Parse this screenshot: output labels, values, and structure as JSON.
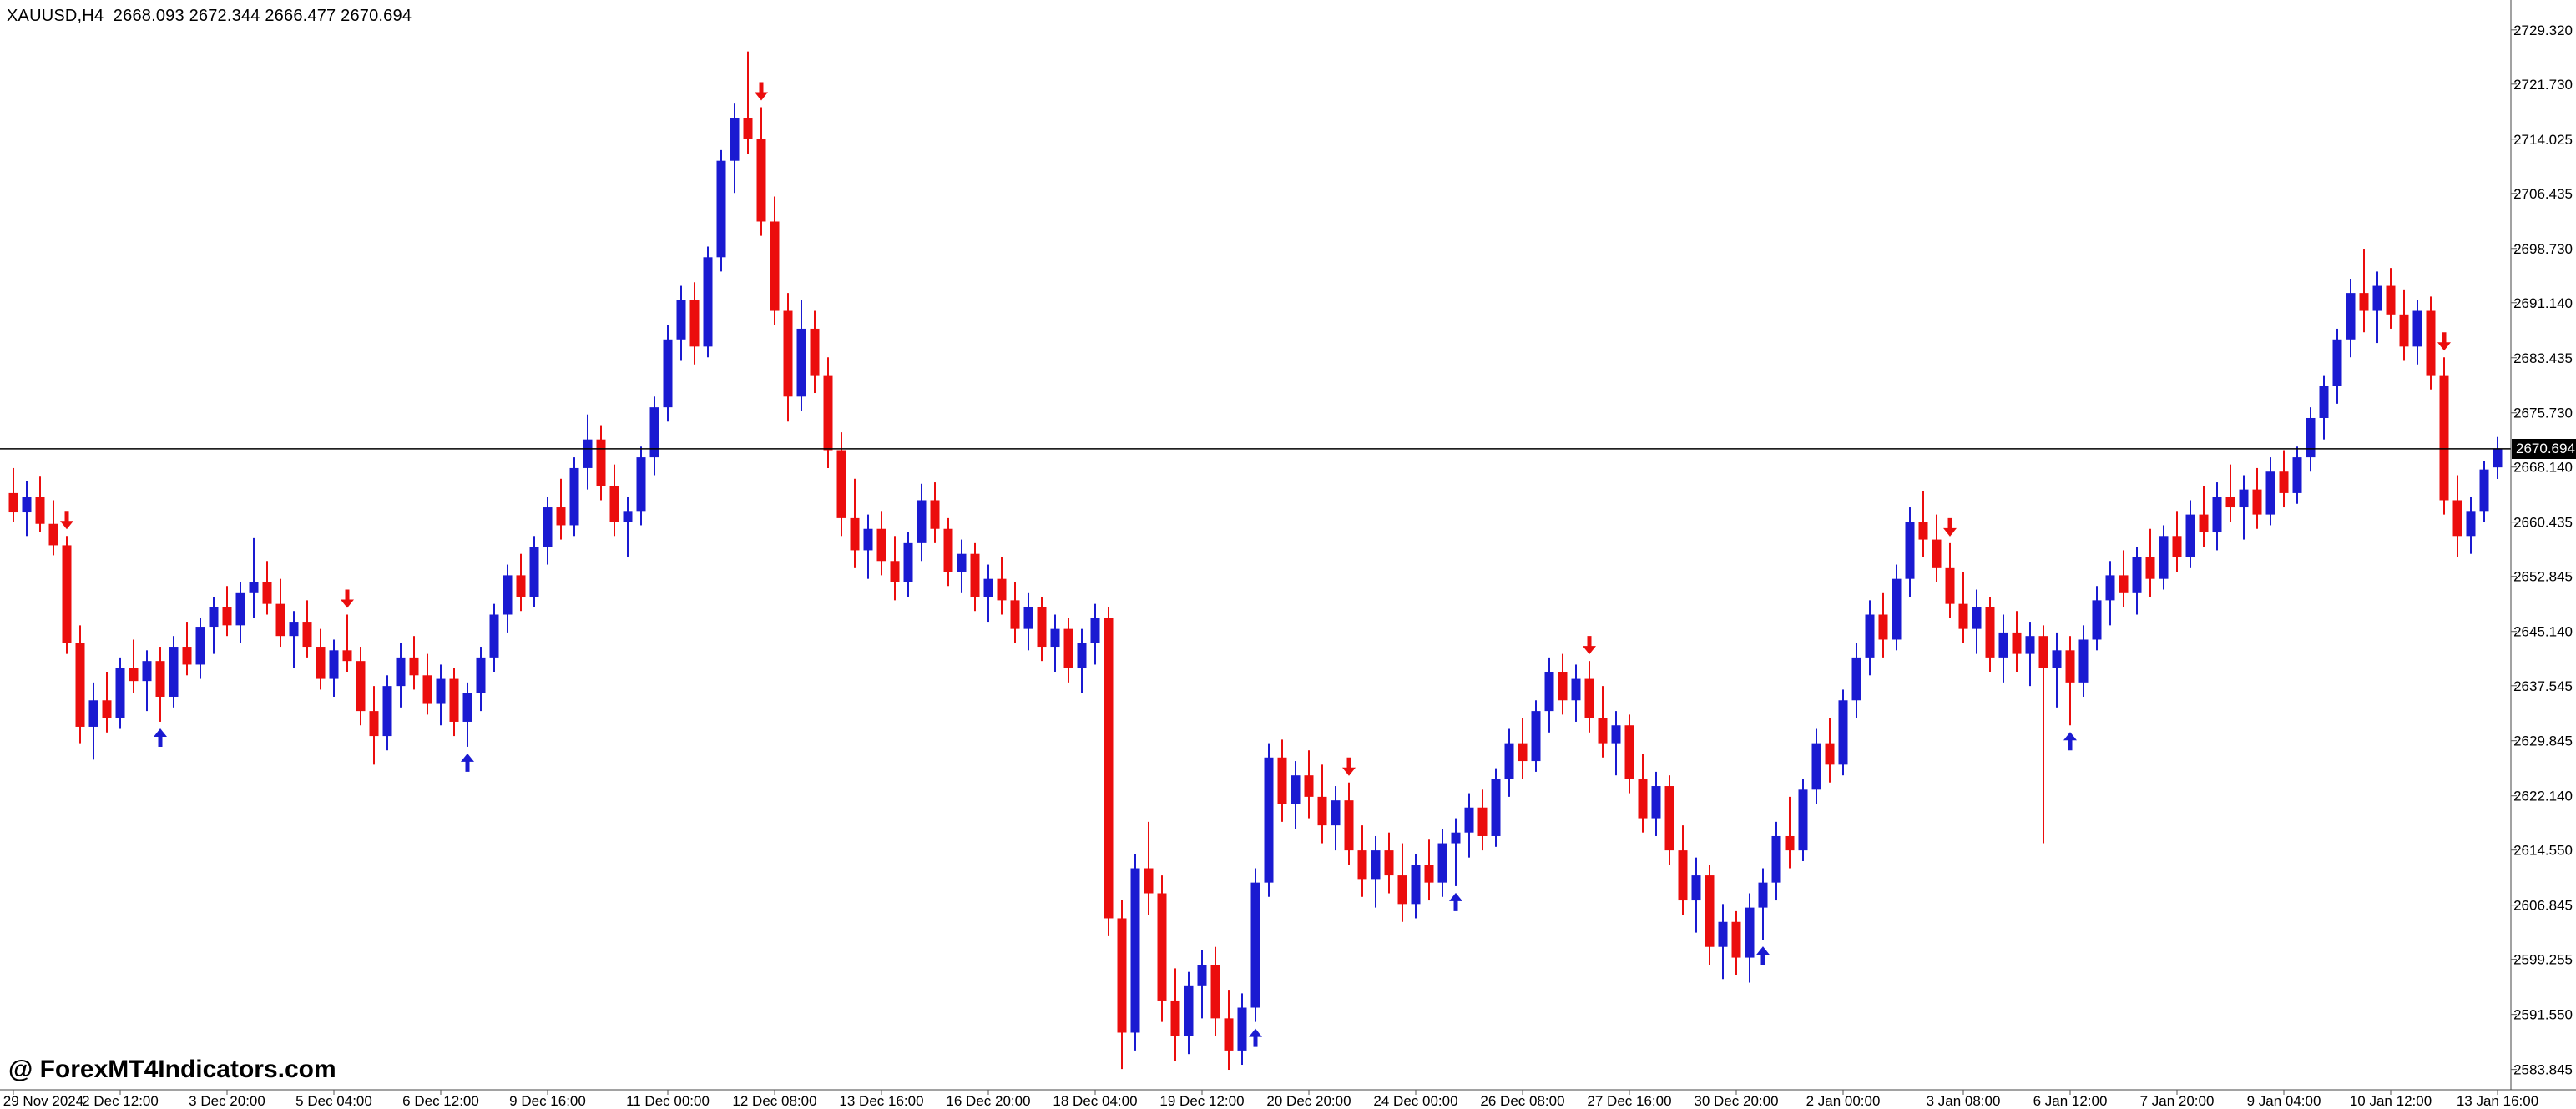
{
  "header": {
    "symbol_period": "XAUUSD,H4",
    "quote_ohlc": "2668.093 2672.344 2666.477 2670.694"
  },
  "watermark": {
    "text": "@ ForexMT4Indicators.com"
  },
  "colors": {
    "background": "#ffffff",
    "bull": "#1a1ad1",
    "bear": "#eb0d0d",
    "buy_arrow": "#1a1ad1",
    "sell_arrow": "#eb0d0d",
    "axis_text": "#000000",
    "axis_line": "#444444",
    "tick": "#555555",
    "bid_line": "#000000",
    "price_tag_bg": "#000000",
    "price_tag_text": "#ffffff"
  },
  "chart_data": {
    "type": "candlestick",
    "symbol": "XAUUSD",
    "timeframe": "H4",
    "current_price": 2670.694,
    "current_price_label": "2670.694",
    "ylim": [
      2581.0,
      2733.5
    ],
    "grid": false,
    "legend": "none",
    "y_axis_labels": [
      "2729.320",
      "2721.730",
      "2714.025",
      "2706.435",
      "2698.730",
      "2691.140",
      "2683.435",
      "2675.730",
      "2668.140",
      "2660.435",
      "2652.845",
      "2645.140",
      "2637.545",
      "2629.845",
      "2622.140",
      "2614.550",
      "2606.845",
      "2599.255",
      "2591.550",
      "2583.845"
    ],
    "x_axis_labels": [
      "29 Nov 2024",
      "2 Dec 12:00",
      "3 Dec 20:00",
      "5 Dec 04:00",
      "6 Dec 12:00",
      "9 Dec 16:00",
      "11 Dec 00:00",
      "12 Dec 08:00",
      "13 Dec 16:00",
      "16 Dec 20:00",
      "18 Dec 04:00",
      "19 Dec 12:00",
      "20 Dec 20:00",
      "24 Dec 00:00",
      "26 Dec 08:00",
      "27 Dec 16:00",
      "30 Dec 20:00",
      "2 Jan 00:00",
      "3 Jan 08:00",
      "6 Jan 12:00",
      "7 Jan 20:00",
      "9 Jan 04:00",
      "10 Jan 12:00",
      "13 Jan 16:00"
    ],
    "candles": [
      [
        2664.5,
        2668.0,
        2660.5,
        2661.8
      ],
      [
        2661.8,
        2666.2,
        2658.5,
        2664.0
      ],
      [
        2664.0,
        2666.8,
        2659.0,
        2660.2
      ],
      [
        2660.2,
        2663.5,
        2655.8,
        2657.2
      ],
      [
        2657.2,
        2658.5,
        2642.0,
        2643.5
      ],
      [
        2643.5,
        2646.0,
        2629.5,
        2631.8
      ],
      [
        2631.8,
        2638.0,
        2627.2,
        2635.5
      ],
      [
        2635.5,
        2639.5,
        2631.0,
        2633.0
      ],
      [
        2633.0,
        2641.5,
        2631.5,
        2640.0
      ],
      [
        2640.0,
        2644.0,
        2636.5,
        2638.2
      ],
      [
        2638.2,
        2642.5,
        2634.0,
        2641.0
      ],
      [
        2641.0,
        2643.0,
        2632.5,
        2636.0
      ],
      [
        2636.0,
        2644.5,
        2634.5,
        2643.0
      ],
      [
        2643.0,
        2646.5,
        2639.0,
        2640.5
      ],
      [
        2640.5,
        2647.0,
        2638.5,
        2645.8
      ],
      [
        2645.8,
        2650.0,
        2642.0,
        2648.5
      ],
      [
        2648.5,
        2651.5,
        2644.5,
        2646.0
      ],
      [
        2646.0,
        2652.0,
        2643.5,
        2650.5
      ],
      [
        2650.5,
        2658.2,
        2647.0,
        2652.0
      ],
      [
        2652.0,
        2655.0,
        2647.5,
        2649.0
      ],
      [
        2649.0,
        2652.5,
        2643.0,
        2644.5
      ],
      [
        2644.5,
        2648.0,
        2640.0,
        2646.5
      ],
      [
        2646.5,
        2649.5,
        2641.5,
        2643.0
      ],
      [
        2643.0,
        2645.5,
        2637.0,
        2638.5
      ],
      [
        2638.5,
        2644.0,
        2636.0,
        2642.5
      ],
      [
        2642.5,
        2647.5,
        2639.5,
        2641.0
      ],
      [
        2641.0,
        2643.0,
        2632.0,
        2634.0
      ],
      [
        2634.0,
        2637.5,
        2626.5,
        2630.5
      ],
      [
        2630.5,
        2639.0,
        2628.5,
        2637.5
      ],
      [
        2637.5,
        2643.5,
        2634.5,
        2641.5
      ],
      [
        2641.5,
        2644.5,
        2637.0,
        2639.0
      ],
      [
        2639.0,
        2642.0,
        2633.5,
        2635.0
      ],
      [
        2635.0,
        2640.5,
        2632.0,
        2638.5
      ],
      [
        2638.5,
        2640.0,
        2630.5,
        2632.5
      ],
      [
        2632.5,
        2638.0,
        2629.0,
        2636.5
      ],
      [
        2636.5,
        2643.0,
        2634.0,
        2641.5
      ],
      [
        2641.5,
        2649.0,
        2639.5,
        2647.5
      ],
      [
        2647.5,
        2654.5,
        2645.0,
        2653.0
      ],
      [
        2653.0,
        2656.0,
        2648.0,
        2650.0
      ],
      [
        2650.0,
        2658.5,
        2648.5,
        2657.0
      ],
      [
        2657.0,
        2664.0,
        2654.5,
        2662.5
      ],
      [
        2662.5,
        2666.5,
        2658.0,
        2660.0
      ],
      [
        2660.0,
        2669.5,
        2658.5,
        2668.0
      ],
      [
        2668.0,
        2675.5,
        2665.0,
        2672.0
      ],
      [
        2672.0,
        2674.0,
        2663.5,
        2665.5
      ],
      [
        2665.5,
        2668.5,
        2658.5,
        2660.5
      ],
      [
        2660.5,
        2664.0,
        2655.5,
        2662.0
      ],
      [
        2662.0,
        2671.0,
        2660.0,
        2669.5
      ],
      [
        2669.5,
        2678.0,
        2667.0,
        2676.5
      ],
      [
        2676.5,
        2688.0,
        2674.5,
        2686.0
      ],
      [
        2686.0,
        2693.5,
        2683.0,
        2691.5
      ],
      [
        2691.5,
        2694.0,
        2682.5,
        2685.0
      ],
      [
        2685.0,
        2699.0,
        2683.5,
        2697.5
      ],
      [
        2697.5,
        2712.5,
        2695.5,
        2711.0
      ],
      [
        2711.0,
        2719.0,
        2706.5,
        2717.0
      ],
      [
        2717.0,
        2726.3,
        2712.0,
        2714.0
      ],
      [
        2714.0,
        2718.5,
        2700.5,
        2702.5
      ],
      [
        2702.5,
        2706.0,
        2688.0,
        2690.0
      ],
      [
        2690.0,
        2692.5,
        2674.5,
        2678.0
      ],
      [
        2678.0,
        2691.5,
        2676.0,
        2687.5
      ],
      [
        2687.5,
        2690.0,
        2678.5,
        2681.0
      ],
      [
        2681.0,
        2683.5,
        2668.0,
        2670.5
      ],
      [
        2670.5,
        2673.0,
        2658.5,
        2661.0
      ],
      [
        2661.0,
        2666.5,
        2654.0,
        2656.5
      ],
      [
        2656.5,
        2661.5,
        2652.5,
        2659.5
      ],
      [
        2659.5,
        2662.0,
        2653.0,
        2655.0
      ],
      [
        2655.0,
        2658.5,
        2649.5,
        2652.0
      ],
      [
        2652.0,
        2659.0,
        2650.0,
        2657.5
      ],
      [
        2657.5,
        2665.8,
        2655.0,
        2663.5
      ],
      [
        2663.5,
        2666.0,
        2657.5,
        2659.5
      ],
      [
        2659.5,
        2661.0,
        2651.5,
        2653.5
      ],
      [
        2653.5,
        2658.0,
        2650.5,
        2656.0
      ],
      [
        2656.0,
        2657.5,
        2648.0,
        2650.0
      ],
      [
        2650.0,
        2654.5,
        2646.5,
        2652.5
      ],
      [
        2652.5,
        2655.5,
        2647.5,
        2649.5
      ],
      [
        2649.5,
        2652.0,
        2643.5,
        2645.5
      ],
      [
        2645.5,
        2650.5,
        2642.5,
        2648.5
      ],
      [
        2648.5,
        2650.0,
        2641.0,
        2643.0
      ],
      [
        2643.0,
        2647.5,
        2639.5,
        2645.5
      ],
      [
        2645.5,
        2647.0,
        2638.0,
        2640.0
      ],
      [
        2640.0,
        2645.5,
        2636.5,
        2643.5
      ],
      [
        2643.5,
        2649.0,
        2640.5,
        2647.0
      ],
      [
        2647.0,
        2648.5,
        2602.5,
        2605.0
      ],
      [
        2605.0,
        2607.5,
        2583.9,
        2589.0
      ],
      [
        2589.0,
        2614.0,
        2586.5,
        2612.0
      ],
      [
        2612.0,
        2618.5,
        2605.5,
        2608.5
      ],
      [
        2608.5,
        2611.0,
        2590.5,
        2593.5
      ],
      [
        2593.5,
        2598.0,
        2585.0,
        2588.5
      ],
      [
        2588.5,
        2597.5,
        2586.0,
        2595.5
      ],
      [
        2595.5,
        2600.5,
        2591.0,
        2598.5
      ],
      [
        2598.5,
        2601.0,
        2588.5,
        2591.0
      ],
      [
        2591.0,
        2595.0,
        2583.8,
        2586.5
      ],
      [
        2586.5,
        2594.5,
        2584.5,
        2592.5
      ],
      [
        2592.5,
        2612.0,
        2590.5,
        2610.0
      ],
      [
        2610.0,
        2629.5,
        2608.0,
        2627.5
      ],
      [
        2627.5,
        2630.0,
        2618.5,
        2621.0
      ],
      [
        2621.0,
        2627.0,
        2617.5,
        2625.0
      ],
      [
        2625.0,
        2628.5,
        2619.0,
        2622.0
      ],
      [
        2622.0,
        2626.5,
        2615.5,
        2618.0
      ],
      [
        2618.0,
        2623.5,
        2614.5,
        2621.5
      ],
      [
        2621.5,
        2624.0,
        2612.5,
        2614.5
      ],
      [
        2614.5,
        2618.0,
        2608.0,
        2610.5
      ],
      [
        2610.5,
        2616.5,
        2606.5,
        2614.5
      ],
      [
        2614.5,
        2617.0,
        2608.5,
        2611.0
      ],
      [
        2611.0,
        2615.5,
        2604.5,
        2607.0
      ],
      [
        2607.0,
        2614.0,
        2605.0,
        2612.5
      ],
      [
        2612.5,
        2616.0,
        2607.5,
        2610.0
      ],
      [
        2610.0,
        2617.5,
        2608.0,
        2615.5
      ],
      [
        2615.5,
        2619.0,
        2609.5,
        2617.0
      ],
      [
        2617.0,
        2622.5,
        2613.5,
        2620.5
      ],
      [
        2620.5,
        2623.0,
        2614.5,
        2616.5
      ],
      [
        2616.5,
        2626.0,
        2615.0,
        2624.5
      ],
      [
        2624.5,
        2631.5,
        2622.0,
        2629.5
      ],
      [
        2629.5,
        2633.0,
        2624.5,
        2627.0
      ],
      [
        2627.0,
        2635.5,
        2625.5,
        2634.0
      ],
      [
        2634.0,
        2641.5,
        2631.0,
        2639.5
      ],
      [
        2639.5,
        2642.0,
        2633.5,
        2635.5
      ],
      [
        2635.5,
        2640.5,
        2632.5,
        2638.5
      ],
      [
        2638.5,
        2641.0,
        2631.0,
        2633.0
      ],
      [
        2633.0,
        2637.5,
        2627.5,
        2629.5
      ],
      [
        2629.5,
        2634.0,
        2625.0,
        2632.0
      ],
      [
        2632.0,
        2633.5,
        2622.5,
        2624.5
      ],
      [
        2624.5,
        2628.0,
        2617.0,
        2619.0
      ],
      [
        2619.0,
        2625.5,
        2616.5,
        2623.5
      ],
      [
        2623.5,
        2625.0,
        2612.5,
        2614.5
      ],
      [
        2614.5,
        2618.0,
        2605.5,
        2607.5
      ],
      [
        2607.5,
        2613.5,
        2603.0,
        2611.0
      ],
      [
        2611.0,
        2612.5,
        2598.5,
        2601.0
      ],
      [
        2601.0,
        2607.0,
        2596.5,
        2604.5
      ],
      [
        2604.5,
        2606.0,
        2597.0,
        2599.5
      ],
      [
        2599.5,
        2608.5,
        2596.0,
        2606.5
      ],
      [
        2606.5,
        2612.0,
        2602.0,
        2610.0
      ],
      [
        2610.0,
        2618.5,
        2607.5,
        2616.5
      ],
      [
        2616.5,
        2622.0,
        2612.0,
        2614.5
      ],
      [
        2614.5,
        2624.5,
        2613.0,
        2623.0
      ],
      [
        2623.0,
        2631.5,
        2621.0,
        2629.5
      ],
      [
        2629.5,
        2633.0,
        2624.0,
        2626.5
      ],
      [
        2626.5,
        2637.0,
        2625.0,
        2635.5
      ],
      [
        2635.5,
        2643.5,
        2633.0,
        2641.5
      ],
      [
        2641.5,
        2649.5,
        2639.0,
        2647.5
      ],
      [
        2647.5,
        2650.5,
        2641.5,
        2644.0
      ],
      [
        2644.0,
        2654.5,
        2642.5,
        2652.5
      ],
      [
        2652.5,
        2662.5,
        2650.0,
        2660.5
      ],
      [
        2660.5,
        2664.8,
        2655.5,
        2658.0
      ],
      [
        2658.0,
        2661.5,
        2652.0,
        2654.0
      ],
      [
        2654.0,
        2657.5,
        2647.0,
        2649.0
      ],
      [
        2649.0,
        2653.5,
        2643.5,
        2645.5
      ],
      [
        2645.5,
        2651.0,
        2642.0,
        2648.5
      ],
      [
        2648.5,
        2650.0,
        2639.5,
        2641.5
      ],
      [
        2641.5,
        2647.5,
        2638.0,
        2645.0
      ],
      [
        2645.0,
        2648.0,
        2639.5,
        2642.0
      ],
      [
        2642.0,
        2646.5,
        2637.5,
        2644.5
      ],
      [
        2644.5,
        2646.0,
        2615.5,
        2640.0
      ],
      [
        2640.0,
        2645.0,
        2634.5,
        2642.5
      ],
      [
        2642.5,
        2644.5,
        2632.0,
        2638.0
      ],
      [
        2638.0,
        2646.0,
        2636.0,
        2644.0
      ],
      [
        2644.0,
        2651.5,
        2642.5,
        2649.5
      ],
      [
        2649.5,
        2655.0,
        2646.0,
        2653.0
      ],
      [
        2653.0,
        2656.5,
        2648.5,
        2650.5
      ],
      [
        2650.5,
        2657.0,
        2647.5,
        2655.5
      ],
      [
        2655.5,
        2659.5,
        2650.0,
        2652.5
      ],
      [
        2652.5,
        2660.0,
        2651.0,
        2658.5
      ],
      [
        2658.5,
        2662.0,
        2653.5,
        2655.5
      ],
      [
        2655.5,
        2663.5,
        2654.0,
        2661.5
      ],
      [
        2661.5,
        2665.5,
        2657.0,
        2659.0
      ],
      [
        2659.0,
        2666.0,
        2656.5,
        2664.0
      ],
      [
        2664.0,
        2668.5,
        2660.5,
        2662.5
      ],
      [
        2662.5,
        2667.0,
        2658.0,
        2665.0
      ],
      [
        2665.0,
        2668.0,
        2659.5,
        2661.5
      ],
      [
        2661.5,
        2669.5,
        2660.0,
        2667.5
      ],
      [
        2667.5,
        2670.5,
        2662.5,
        2664.5
      ],
      [
        2664.5,
        2671.0,
        2663.0,
        2669.5
      ],
      [
        2669.5,
        2676.5,
        2667.5,
        2675.0
      ],
      [
        2675.0,
        2681.0,
        2672.0,
        2679.5
      ],
      [
        2679.5,
        2687.5,
        2677.0,
        2686.0
      ],
      [
        2686.0,
        2694.5,
        2683.5,
        2692.5
      ],
      [
        2692.5,
        2698.7,
        2687.0,
        2690.0
      ],
      [
        2690.0,
        2695.5,
        2685.5,
        2693.5
      ],
      [
        2693.5,
        2696.0,
        2687.5,
        2689.5
      ],
      [
        2689.5,
        2693.0,
        2683.0,
        2685.0
      ],
      [
        2685.0,
        2691.5,
        2682.5,
        2690.0
      ],
      [
        2690.0,
        2692.0,
        2679.0,
        2681.0
      ],
      [
        2681.0,
        2683.5,
        2661.5,
        2663.5
      ],
      [
        2663.5,
        2667.0,
        2655.5,
        2658.5
      ],
      [
        2658.5,
        2664.0,
        2656.0,
        2662.0
      ],
      [
        2662.0,
        2669.0,
        2660.5,
        2667.8
      ],
      [
        2668.093,
        2672.344,
        2666.477,
        2670.694
      ]
    ],
    "signals": [
      {
        "index": 4,
        "type": "sell"
      },
      {
        "index": 11,
        "type": "buy"
      },
      {
        "index": 25,
        "type": "sell"
      },
      {
        "index": 34,
        "type": "buy"
      },
      {
        "index": 56,
        "type": "sell"
      },
      {
        "index": 93,
        "type": "buy"
      },
      {
        "index": 100,
        "type": "sell"
      },
      {
        "index": 108,
        "type": "buy"
      },
      {
        "index": 118,
        "type": "sell"
      },
      {
        "index": 131,
        "type": "buy"
      },
      {
        "index": 145,
        "type": "sell"
      },
      {
        "index": 154,
        "type": "buy"
      },
      {
        "index": 182,
        "type": "sell"
      }
    ]
  }
}
